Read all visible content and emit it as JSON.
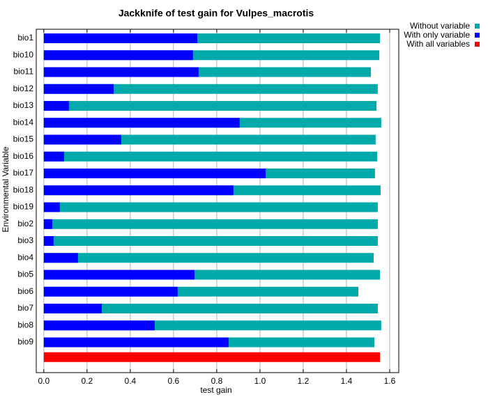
{
  "chart_data": {
    "type": "bar",
    "orientation": "horizontal",
    "title": "Jackknife of test gain for Vulpes_macrotis",
    "x_label": "test gain",
    "y_label": "Environmental Variable",
    "categories": [
      "bio1",
      "bio10",
      "bio11",
      "bio12",
      "bio13",
      "bio14",
      "bio15",
      "bio16",
      "bio17",
      "bio18",
      "bio19",
      "bio2",
      "bio3",
      "bio4",
      "bio5",
      "bio6",
      "bio7",
      "bio8",
      "bio9"
    ],
    "series": [
      {
        "name": "Without variable",
        "color": "#00aaaa",
        "values": [
          1.555,
          1.552,
          1.513,
          1.545,
          1.539,
          1.561,
          1.535,
          1.542,
          1.532,
          1.558,
          1.545,
          1.545,
          1.545,
          1.526,
          1.555,
          1.455,
          1.545,
          1.561,
          1.529
        ]
      },
      {
        "name": "With only variable",
        "color": "#0000ff",
        "values": [
          0.71,
          0.69,
          0.716,
          0.323,
          0.116,
          0.906,
          0.358,
          0.094,
          1.026,
          0.877,
          0.074,
          0.039,
          0.045,
          0.158,
          0.697,
          0.619,
          0.268,
          0.513,
          0.855
        ]
      }
    ],
    "all_variables": {
      "name": "With all variables",
      "color": "#ff0000",
      "value": 1.555
    },
    "xlim": [
      -0.035,
      1.642
    ],
    "xticks": [
      {
        "value": 0,
        "label": "0.0"
      },
      0.2,
      0.4,
      0.6,
      0.8,
      {
        "value": 1,
        "label": "1.0"
      },
      1.2,
      1.4,
      1.6
    ],
    "grid": true,
    "legend": "outside-top-right"
  }
}
